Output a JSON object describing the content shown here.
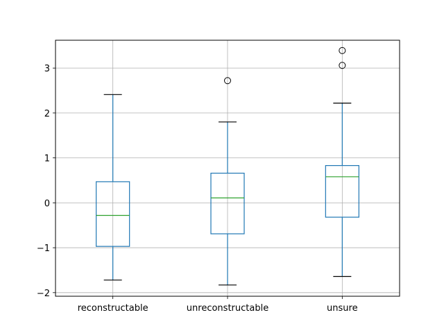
{
  "chart_data": {
    "type": "box",
    "categories": [
      "reconstructable",
      "unreconstructable",
      "unsure"
    ],
    "boxes": [
      {
        "whisker_low": -1.72,
        "q1": -0.97,
        "median": -0.28,
        "q3": 0.47,
        "whisker_high": 2.41,
        "outliers": []
      },
      {
        "whisker_low": -1.83,
        "q1": -0.69,
        "median": 0.11,
        "q3": 0.66,
        "whisker_high": 1.8,
        "outliers": [
          2.72
        ]
      },
      {
        "whisker_low": -1.64,
        "q1": -0.32,
        "median": 0.58,
        "q3": 0.83,
        "whisker_high": 2.22,
        "outliers": [
          3.06,
          3.39
        ]
      }
    ],
    "ylim": [
      -2.08,
      3.62
    ],
    "yticks": [
      -2,
      -1,
      0,
      1,
      2,
      3
    ],
    "ytick_labels": [
      "−2",
      "−1",
      "0",
      "1",
      "2",
      "3"
    ],
    "grid": true,
    "colors": {
      "box": "#1f77b4",
      "median": "#2ca02c",
      "whisker": "#1f77b4",
      "cap": "#000000",
      "grid": "#b0b0b0",
      "flier": "#000000"
    }
  }
}
